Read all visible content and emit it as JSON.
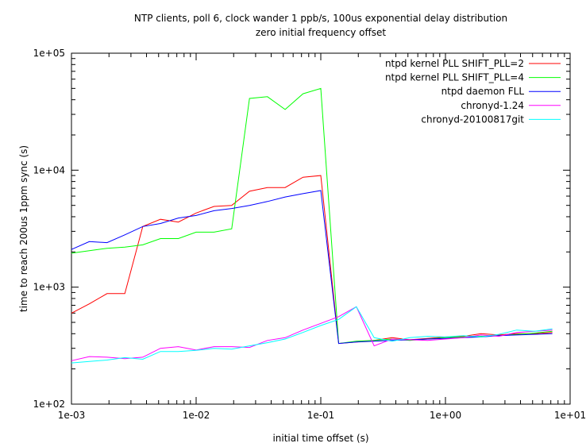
{
  "chart_data": {
    "type": "line",
    "title": "NTP clients, poll 6, clock wander 1 ppb/s, 100us exponential delay distribution",
    "subtitle": "zero initial frequency offset",
    "xlabel": "initial time offset (s)",
    "ylabel": "time to reach 200us 1ppm sync (s)",
    "xscale": "log",
    "yscale": "log",
    "xlim": [
      0.001,
      10
    ],
    "ylim": [
      100,
      100000
    ],
    "xticks": [
      "1e-03",
      "1e-02",
      "1e-01",
      "1e+00",
      "1e+01"
    ],
    "yticks": [
      "1e+02",
      "1e+03",
      "1e+04",
      "1e+05"
    ],
    "legend_position": "top-right",
    "grid": false,
    "series": [
      {
        "name": "ntpd kernel PLL SHIFT_PLL=2",
        "color": "#ff0000",
        "x": [
          0.001,
          0.00139,
          0.00193,
          0.00268,
          0.00373,
          0.00518,
          0.0072,
          0.01,
          0.0139,
          0.0193,
          0.0268,
          0.0373,
          0.0518,
          0.072,
          0.1,
          0.139,
          0.193,
          0.268,
          0.373,
          0.518,
          0.72,
          1,
          1.39,
          1.93,
          2.68,
          3.73,
          5.18,
          7.2
        ],
        "y": [
          600,
          720,
          880,
          880,
          3300,
          3800,
          3600,
          4300,
          4900,
          5000,
          6600,
          7100,
          7100,
          8700,
          9000,
          330,
          340,
          350,
          370,
          355,
          365,
          375,
          380,
          400,
          390,
          400,
          400,
          410
        ]
      },
      {
        "name": "ntpd kernel PLL SHIFT_PLL=4",
        "color": "#00ff00",
        "x": [
          0.001,
          0.00139,
          0.00193,
          0.00268,
          0.00373,
          0.00518,
          0.0072,
          0.01,
          0.0139,
          0.0193,
          0.0268,
          0.0373,
          0.0518,
          0.072,
          0.1,
          0.139,
          0.193,
          0.268,
          0.373,
          0.518,
          0.72,
          1,
          1.39,
          1.93,
          2.68,
          3.73,
          5.18,
          7.2
        ],
        "y": [
          1950,
          2050,
          2150,
          2200,
          2300,
          2600,
          2600,
          2950,
          2950,
          3150,
          41000,
          42500,
          33000,
          45000,
          50000,
          330,
          345,
          350,
          360,
          350,
          360,
          370,
          375,
          380,
          385,
          395,
          405,
          420
        ]
      },
      {
        "name": "ntpd daemon FLL",
        "color": "#0000ff",
        "x": [
          0.001,
          0.00139,
          0.00193,
          0.00268,
          0.00373,
          0.00518,
          0.0072,
          0.01,
          0.0139,
          0.0193,
          0.0268,
          0.0373,
          0.0518,
          0.072,
          0.1,
          0.139,
          0.193,
          0.268,
          0.373,
          0.518,
          0.72,
          1,
          1.39,
          1.93,
          2.68,
          3.73,
          5.18,
          7.2
        ],
        "y": [
          2100,
          2450,
          2400,
          2800,
          3300,
          3500,
          3900,
          4100,
          4500,
          4700,
          5000,
          5400,
          5900,
          6300,
          6700,
          330,
          340,
          345,
          350,
          355,
          360,
          365,
          370,
          375,
          385,
          390,
          395,
          400
        ]
      },
      {
        "name": "chronyd-1.24",
        "color": "#ff00ff",
        "x": [
          0.001,
          0.00139,
          0.00193,
          0.00268,
          0.00373,
          0.00518,
          0.0072,
          0.01,
          0.0139,
          0.0193,
          0.0268,
          0.0373,
          0.0518,
          0.072,
          0.1,
          0.139,
          0.193,
          0.268,
          0.373,
          0.518,
          0.72,
          1,
          1.39,
          1.93,
          2.68,
          3.73,
          5.18,
          7.2
        ],
        "y": [
          235,
          255,
          252,
          245,
          252,
          300,
          310,
          290,
          310,
          310,
          305,
          350,
          370,
          430,
          490,
          560,
          680,
          315,
          360,
          355,
          350,
          360,
          370,
          390,
          380,
          410,
          420,
          430
        ]
      },
      {
        "name": "chronyd-20100817git",
        "color": "#00ffff",
        "x": [
          0.001,
          0.00139,
          0.00193,
          0.00268,
          0.00373,
          0.00518,
          0.0072,
          0.01,
          0.0139,
          0.0193,
          0.0268,
          0.0373,
          0.0518,
          0.072,
          0.1,
          0.139,
          0.193,
          0.268,
          0.373,
          0.518,
          0.72,
          1,
          1.39,
          1.93,
          2.68,
          3.73,
          5.18,
          7.2
        ],
        "y": [
          225,
          232,
          238,
          250,
          242,
          282,
          282,
          288,
          300,
          295,
          315,
          335,
          360,
          410,
          470,
          530,
          680,
          370,
          345,
          370,
          380,
          375,
          385,
          375,
          395,
          430,
          420,
          440
        ]
      }
    ]
  }
}
